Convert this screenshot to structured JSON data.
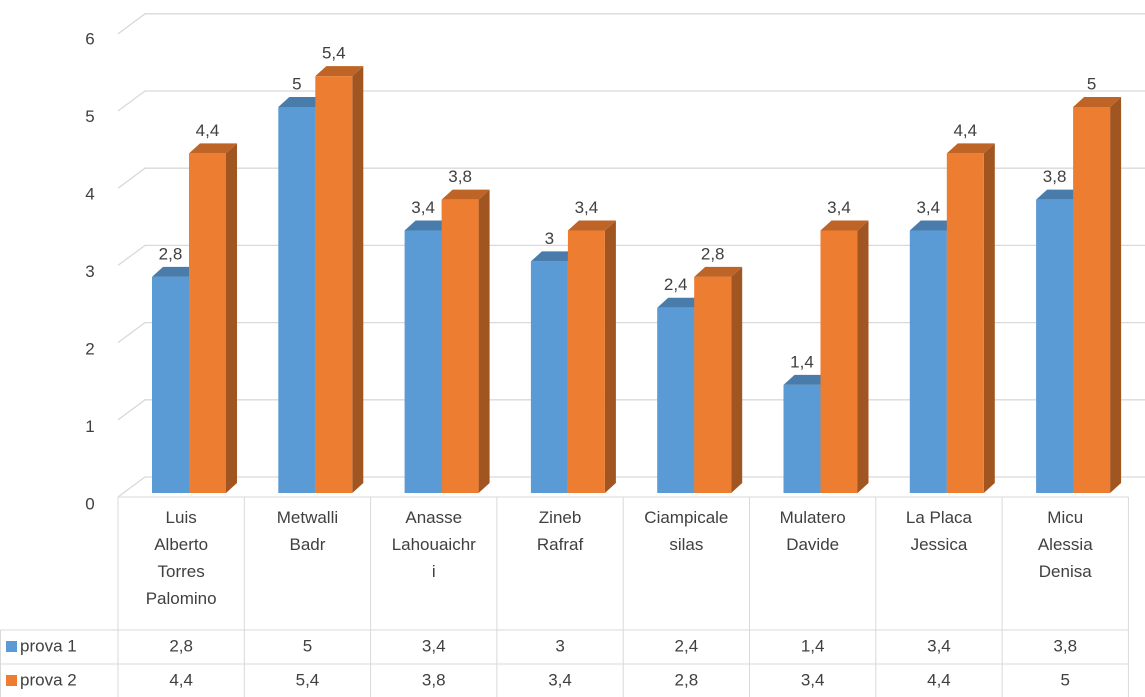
{
  "chart_data": {
    "type": "bar",
    "categories": [
      "Luis Alberto Torres Palomino",
      "Metwalli Badr",
      "Anasse Lahouaichri",
      "Zineb Rafraf",
      "Ciampicale silas",
      "Mulatero Davide",
      "La Placa Jessica",
      "Micu Alessia Denisa"
    ],
    "series": [
      {
        "name": "prova 1",
        "color": "#5b9bd5",
        "values": [
          2.8,
          5,
          3.4,
          3,
          2.4,
          1.4,
          3.4,
          3.8
        ],
        "value_labels": [
          "2,8",
          "5",
          "3,4",
          "3",
          "2,4",
          "1,4",
          "3,4",
          "3,8"
        ]
      },
      {
        "name": "prova 2",
        "color": "#ed7d31",
        "values": [
          4.4,
          5.4,
          3.8,
          3.4,
          2.8,
          3.4,
          4.4,
          5
        ],
        "value_labels": [
          "4,4",
          "5,4",
          "3,8",
          "3,4",
          "2,8",
          "3,4",
          "4,4",
          "5"
        ]
      }
    ],
    "ylim": [
      0,
      6
    ],
    "yticks": [
      0,
      1,
      2,
      3,
      4,
      5,
      6
    ],
    "grid": true,
    "legend": "data-table"
  }
}
